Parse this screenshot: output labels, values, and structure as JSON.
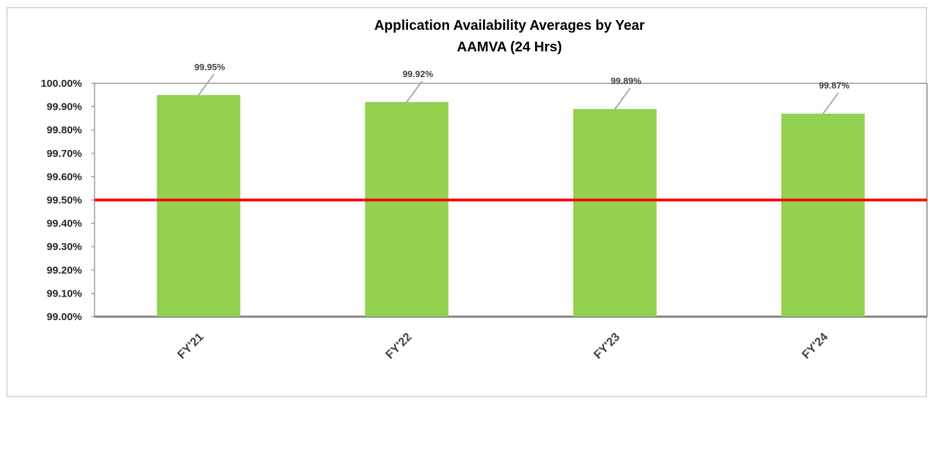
{
  "chart_data": {
    "type": "bar",
    "title": "Application Availability Averages by Year",
    "subtitle": "AAMVA (24 Hrs)",
    "categories": [
      "FY'21",
      "FY'22",
      "FY'23",
      "FY'24"
    ],
    "values": [
      99.95,
      99.92,
      99.89,
      99.87
    ],
    "data_labels": [
      "99.95%",
      "99.92%",
      "99.89%",
      "99.87%"
    ],
    "ylim": [
      99.0,
      100.0
    ],
    "yticks": [
      99.0,
      99.1,
      99.2,
      99.3,
      99.4,
      99.5,
      99.6,
      99.7,
      99.8,
      99.9,
      100.0
    ],
    "ytick_labels": [
      "99.00%",
      "99.10%",
      "99.20%",
      "99.30%",
      "99.40%",
      "99.50%",
      "99.60%",
      "99.70%",
      "99.80%",
      "99.90%",
      "100.00%"
    ],
    "target_line": 99.5,
    "xlabel": "",
    "ylabel": "",
    "grid": false,
    "legend": "none",
    "colors": {
      "bar": "#92d050",
      "target_line": "#ff0000",
      "leader_line": "#a6a6a6",
      "axis": "#808080"
    }
  }
}
